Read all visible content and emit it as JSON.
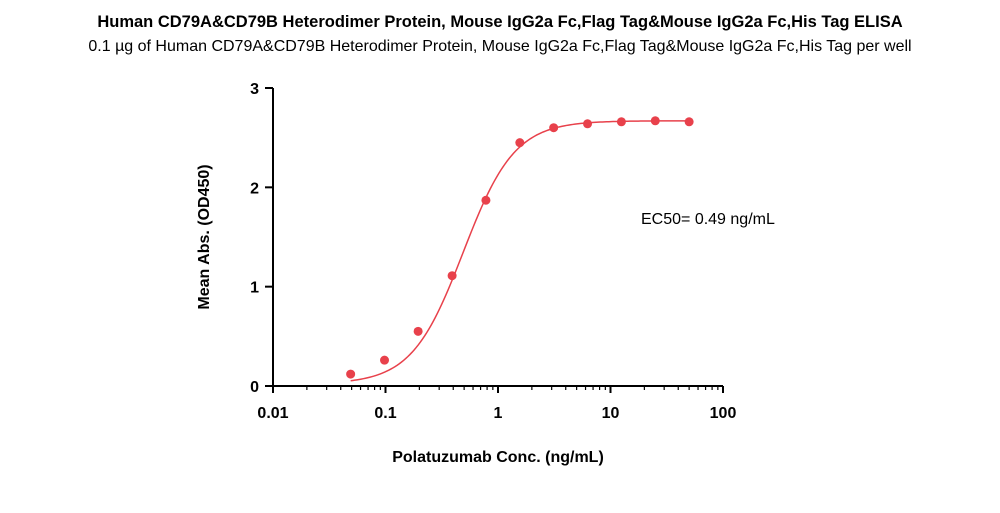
{
  "chart_data": {
    "type": "scatter",
    "title": "Human CD79A&CD79B Heterodimer Protein, Mouse IgG2a Fc,Flag Tag&Mouse IgG2a Fc,His Tag ELISA",
    "subtitle": "0.1 µg of Human CD79A&CD79B Heterodimer Protein, Mouse IgG2a Fc,Flag Tag&Mouse IgG2a Fc,His Tag per well",
    "xlabel": "Polatuzumab Conc. (ng/mL)",
    "ylabel": "Mean Abs. (OD450)",
    "xscale": "log",
    "xlim": [
      0.01,
      100
    ],
    "ylim": [
      0,
      3
    ],
    "xticks": [
      0.01,
      0.1,
      1,
      10,
      100
    ],
    "xtick_labels": [
      "0.01",
      "0.1",
      "1",
      "10",
      "100"
    ],
    "yticks": [
      0,
      1,
      2,
      3
    ],
    "ytick_labels": [
      "0",
      "1",
      "2",
      "3"
    ],
    "grid": false,
    "series": [
      {
        "x": [
          0.049,
          0.098,
          0.195,
          0.391,
          0.781,
          1.563,
          3.125,
          6.25,
          12.5,
          25,
          50
        ],
        "y": [
          0.12,
          0.26,
          0.55,
          1.11,
          1.87,
          2.45,
          2.6,
          2.64,
          2.66,
          2.67,
          2.66
        ],
        "color": "#e8414b",
        "fit": "4PL sigmoid"
      }
    ],
    "annotations": [
      {
        "text": "EC50= 0.49 ng/mL"
      }
    ],
    "curve_fit": {
      "bottom": 0.02,
      "top": 2.67,
      "ec50": 0.49,
      "hill": 1.9
    }
  }
}
